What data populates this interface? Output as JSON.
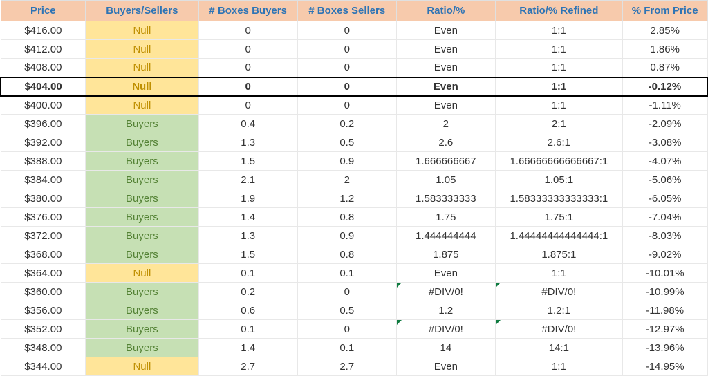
{
  "table": {
    "type": "table",
    "background_color": "#ffffff",
    "header_bg": "#f7caac",
    "header_text_color": "#2e74b5",
    "null_bg": "#ffe599",
    "null_text_color": "#bf8f00",
    "buyers_bg": "#c6e0b4",
    "buyers_text_color": "#548235",
    "grid_color": "#e8e8e8",
    "error_marker_color": "#107c41",
    "font_family": "Arial",
    "header_fontsize": 15,
    "cell_fontsize": 15,
    "columns": [
      {
        "label": "Price",
        "width": "12%"
      },
      {
        "label": "Buyers/Sellers",
        "width": "16%"
      },
      {
        "label": "# Boxes Buyers",
        "width": "14%"
      },
      {
        "label": "# Boxes Sellers",
        "width": "14%"
      },
      {
        "label": "Ratio/%",
        "width": "14%"
      },
      {
        "label": "Ratio/% Refined",
        "width": "18%"
      },
      {
        "label": "% From Price",
        "width": "12%"
      }
    ],
    "rows": [
      {
        "price": "$416.00",
        "bs": "Null",
        "bs_type": "null",
        "boxes_b": "0",
        "boxes_s": "0",
        "ratio": "Even",
        "ratio_ref": "1:1",
        "from_price": "2.85%",
        "highlighted": false,
        "err_ratio": false,
        "err_ratio_ref": false
      },
      {
        "price": "$412.00",
        "bs": "Null",
        "bs_type": "null",
        "boxes_b": "0",
        "boxes_s": "0",
        "ratio": "Even",
        "ratio_ref": "1:1",
        "from_price": "1.86%",
        "highlighted": false,
        "err_ratio": false,
        "err_ratio_ref": false
      },
      {
        "price": "$408.00",
        "bs": "Null",
        "bs_type": "null",
        "boxes_b": "0",
        "boxes_s": "0",
        "ratio": "Even",
        "ratio_ref": "1:1",
        "from_price": "0.87%",
        "highlighted": false,
        "err_ratio": false,
        "err_ratio_ref": false
      },
      {
        "price": "$404.00",
        "bs": "Null",
        "bs_type": "null",
        "boxes_b": "0",
        "boxes_s": "0",
        "ratio": "Even",
        "ratio_ref": "1:1",
        "from_price": "-0.12%",
        "highlighted": true,
        "err_ratio": false,
        "err_ratio_ref": false
      },
      {
        "price": "$400.00",
        "bs": "Null",
        "bs_type": "null",
        "boxes_b": "0",
        "boxes_s": "0",
        "ratio": "Even",
        "ratio_ref": "1:1",
        "from_price": "-1.11%",
        "highlighted": false,
        "err_ratio": false,
        "err_ratio_ref": false
      },
      {
        "price": "$396.00",
        "bs": "Buyers",
        "bs_type": "buyers",
        "boxes_b": "0.4",
        "boxes_s": "0.2",
        "ratio": "2",
        "ratio_ref": "2:1",
        "from_price": "-2.09%",
        "highlighted": false,
        "err_ratio": false,
        "err_ratio_ref": false
      },
      {
        "price": "$392.00",
        "bs": "Buyers",
        "bs_type": "buyers",
        "boxes_b": "1.3",
        "boxes_s": "0.5",
        "ratio": "2.6",
        "ratio_ref": "2.6:1",
        "from_price": "-3.08%",
        "highlighted": false,
        "err_ratio": false,
        "err_ratio_ref": false
      },
      {
        "price": "$388.00",
        "bs": "Buyers",
        "bs_type": "buyers",
        "boxes_b": "1.5",
        "boxes_s": "0.9",
        "ratio": "1.666666667",
        "ratio_ref": "1.66666666666667:1",
        "from_price": "-4.07%",
        "highlighted": false,
        "err_ratio": false,
        "err_ratio_ref": false
      },
      {
        "price": "$384.00",
        "bs": "Buyers",
        "bs_type": "buyers",
        "boxes_b": "2.1",
        "boxes_s": "2",
        "ratio": "1.05",
        "ratio_ref": "1.05:1",
        "from_price": "-5.06%",
        "highlighted": false,
        "err_ratio": false,
        "err_ratio_ref": false
      },
      {
        "price": "$380.00",
        "bs": "Buyers",
        "bs_type": "buyers",
        "boxes_b": "1.9",
        "boxes_s": "1.2",
        "ratio": "1.583333333",
        "ratio_ref": "1.58333333333333:1",
        "from_price": "-6.05%",
        "highlighted": false,
        "err_ratio": false,
        "err_ratio_ref": false
      },
      {
        "price": "$376.00",
        "bs": "Buyers",
        "bs_type": "buyers",
        "boxes_b": "1.4",
        "boxes_s": "0.8",
        "ratio": "1.75",
        "ratio_ref": "1.75:1",
        "from_price": "-7.04%",
        "highlighted": false,
        "err_ratio": false,
        "err_ratio_ref": false
      },
      {
        "price": "$372.00",
        "bs": "Buyers",
        "bs_type": "buyers",
        "boxes_b": "1.3",
        "boxes_s": "0.9",
        "ratio": "1.444444444",
        "ratio_ref": "1.44444444444444:1",
        "from_price": "-8.03%",
        "highlighted": false,
        "err_ratio": false,
        "err_ratio_ref": false
      },
      {
        "price": "$368.00",
        "bs": "Buyers",
        "bs_type": "buyers",
        "boxes_b": "1.5",
        "boxes_s": "0.8",
        "ratio": "1.875",
        "ratio_ref": "1.875:1",
        "from_price": "-9.02%",
        "highlighted": false,
        "err_ratio": false,
        "err_ratio_ref": false
      },
      {
        "price": "$364.00",
        "bs": "Null",
        "bs_type": "null",
        "boxes_b": "0.1",
        "boxes_s": "0.1",
        "ratio": "Even",
        "ratio_ref": "1:1",
        "from_price": "-10.01%",
        "highlighted": false,
        "err_ratio": false,
        "err_ratio_ref": false
      },
      {
        "price": "$360.00",
        "bs": "Buyers",
        "bs_type": "buyers",
        "boxes_b": "0.2",
        "boxes_s": "0",
        "ratio": "#DIV/0!",
        "ratio_ref": "#DIV/0!",
        "from_price": "-10.99%",
        "highlighted": false,
        "err_ratio": true,
        "err_ratio_ref": true
      },
      {
        "price": "$356.00",
        "bs": "Buyers",
        "bs_type": "buyers",
        "boxes_b": "0.6",
        "boxes_s": "0.5",
        "ratio": "1.2",
        "ratio_ref": "1.2:1",
        "from_price": "-11.98%",
        "highlighted": false,
        "err_ratio": false,
        "err_ratio_ref": false
      },
      {
        "price": "$352.00",
        "bs": "Buyers",
        "bs_type": "buyers",
        "boxes_b": "0.1",
        "boxes_s": "0",
        "ratio": "#DIV/0!",
        "ratio_ref": "#DIV/0!",
        "from_price": "-12.97%",
        "highlighted": false,
        "err_ratio": true,
        "err_ratio_ref": true
      },
      {
        "price": "$348.00",
        "bs": "Buyers",
        "bs_type": "buyers",
        "boxes_b": "1.4",
        "boxes_s": "0.1",
        "ratio": "14",
        "ratio_ref": "14:1",
        "from_price": "-13.96%",
        "highlighted": false,
        "err_ratio": false,
        "err_ratio_ref": false
      },
      {
        "price": "$344.00",
        "bs": "Null",
        "bs_type": "null",
        "boxes_b": "2.7",
        "boxes_s": "2.7",
        "ratio": "Even",
        "ratio_ref": "1:1",
        "from_price": "-14.95%",
        "highlighted": false,
        "err_ratio": false,
        "err_ratio_ref": false
      }
    ]
  }
}
